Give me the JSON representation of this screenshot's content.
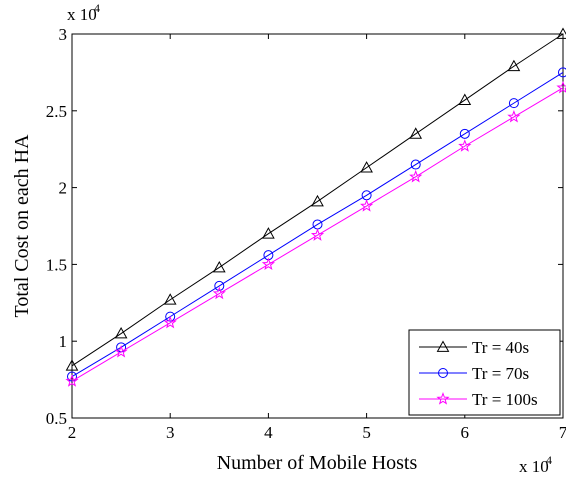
{
  "chart_data": {
    "type": "line",
    "title": "",
    "xlabel": "Number of Mobile Hosts",
    "ylabel": "Total Cost on each HA",
    "x_multiplier": "x 10",
    "x_exponent": "4",
    "y_multiplier": "x 10",
    "y_exponent": "4",
    "xlim": [
      2,
      7
    ],
    "ylim": [
      0.5,
      3
    ],
    "x_ticks": [
      2,
      3,
      4,
      5,
      6,
      7
    ],
    "x_tick_labels": [
      "2",
      "3",
      "4",
      "5",
      "6",
      "7"
    ],
    "y_ticks": [
      0.5,
      1,
      1.5,
      2,
      2.5,
      3
    ],
    "y_tick_labels": [
      "0.5",
      "1",
      "1.5",
      "2",
      "2.5",
      "3"
    ],
    "grid": false,
    "legend_position": "bottom-right",
    "x": [
      2,
      2.5,
      3,
      3.5,
      4,
      4.5,
      5,
      5.5,
      6,
      6.5,
      7
    ],
    "series": [
      {
        "name": "Tr = 40s",
        "color": "#000000",
        "marker": "triangle",
        "values": [
          0.84,
          1.05,
          1.27,
          1.48,
          1.7,
          1.91,
          2.13,
          2.35,
          2.57,
          2.79,
          3.0
        ]
      },
      {
        "name": "Tr = 70s",
        "color": "#0000ff",
        "marker": "circle",
        "values": [
          0.77,
          0.96,
          1.16,
          1.36,
          1.56,
          1.76,
          1.95,
          2.15,
          2.35,
          2.55,
          2.75
        ]
      },
      {
        "name": "Tr = 100s",
        "color": "#ff00ff",
        "marker": "star",
        "values": [
          0.74,
          0.93,
          1.12,
          1.31,
          1.5,
          1.69,
          1.88,
          2.07,
          2.27,
          2.46,
          2.65
        ]
      }
    ]
  }
}
